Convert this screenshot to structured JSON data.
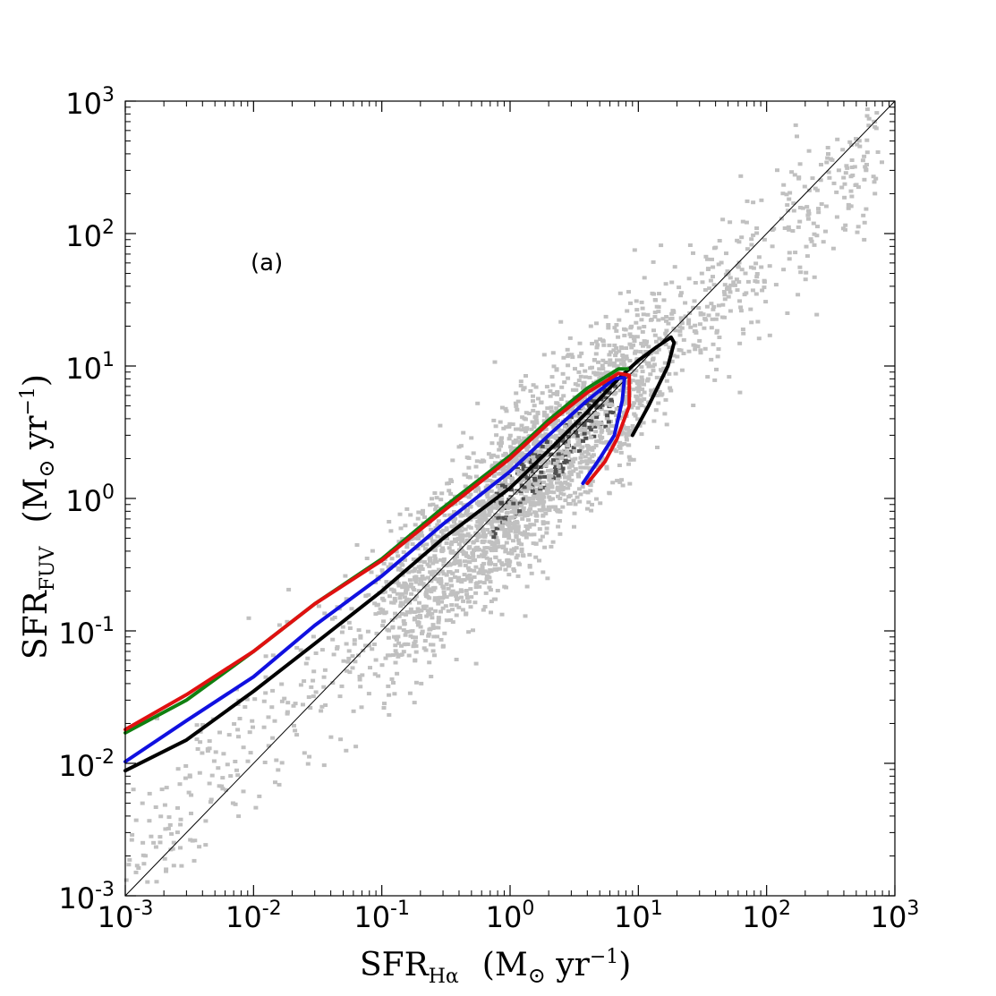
{
  "chart_data": {
    "type": "line",
    "panel_label": "(a)",
    "xlabel": {
      "main": "SFR",
      "sub": "Hα",
      "units_open": "(M",
      "sun": "⊙",
      "units_mid": " yr",
      "exp": "−1",
      "units_close": ")"
    },
    "ylabel": {
      "main": "SFR",
      "sub": "FUV",
      "units_open": "(M",
      "sun": "⊙",
      "units_mid": " yr",
      "exp": "−1",
      "units_close": ")"
    },
    "xscale": "log",
    "yscale": "log",
    "xlim": [
      0.001,
      1000
    ],
    "ylim": [
      0.001,
      1000
    ],
    "grid": false,
    "x_ticks": [
      {
        "value": 0.001,
        "base": "10",
        "exp": "-3"
      },
      {
        "value": 0.01,
        "base": "10",
        "exp": "-2"
      },
      {
        "value": 0.1,
        "base": "10",
        "exp": "-1"
      },
      {
        "value": 1,
        "base": "10",
        "exp": "0"
      },
      {
        "value": 10,
        "base": "10",
        "exp": "1"
      },
      {
        "value": 100,
        "base": "10",
        "exp": "2"
      },
      {
        "value": 1000,
        "base": "10",
        "exp": "3"
      }
    ],
    "y_ticks": [
      {
        "value": 0.001,
        "base": "10",
        "exp": "-3"
      },
      {
        "value": 0.01,
        "base": "10",
        "exp": "-2"
      },
      {
        "value": 0.1,
        "base": "10",
        "exp": "-1"
      },
      {
        "value": 1,
        "base": "10",
        "exp": "0"
      },
      {
        "value": 10,
        "base": "10",
        "exp": "1"
      },
      {
        "value": 100,
        "base": "10",
        "exp": "2"
      },
      {
        "value": 1000,
        "base": "10",
        "exp": "3"
      }
    ],
    "one_to_one_line": {
      "x": [
        0.001,
        1000
      ],
      "y": [
        0.001,
        1000
      ],
      "color": "#000000"
    },
    "scatter_cloud": {
      "color_light": "#c0c0c0",
      "color_dark": "#505050",
      "ridge": {
        "x": [
          0.003,
          0.01,
          0.03,
          0.1,
          0.3,
          1,
          3,
          10,
          30,
          100,
          300
        ],
        "y": [
          0.005,
          0.015,
          0.04,
          0.12,
          0.33,
          1.0,
          2.8,
          8.5,
          24,
          70,
          200
        ]
      }
    },
    "series": [
      {
        "color": "#000000",
        "x": [
          0.001,
          0.003,
          0.01,
          0.03,
          0.1,
          0.3,
          1.0,
          2.0,
          4.0,
          7.0,
          10,
          14,
          18,
          19,
          17,
          12,
          9
        ],
        "y": [
          0.0088,
          0.015,
          0.035,
          0.08,
          0.2,
          0.5,
          1.2,
          2.3,
          4.5,
          8.0,
          11,
          14,
          16.5,
          15,
          10,
          5,
          3.0
        ]
      },
      {
        "color": "#1010e0",
        "x": [
          0.001,
          0.003,
          0.01,
          0.03,
          0.1,
          0.3,
          1.0,
          2.0,
          4.0,
          6.5,
          7.8,
          7.5,
          6.5,
          5.0,
          3.7
        ],
        "y": [
          0.0103,
          0.021,
          0.045,
          0.11,
          0.26,
          0.64,
          1.6,
          3.0,
          5.5,
          8.0,
          8.2,
          5.5,
          3.0,
          2.0,
          1.3
        ]
      },
      {
        "color": "#108010",
        "x": [
          0.001,
          0.003,
          0.01,
          0.03,
          0.1,
          0.3,
          1.0,
          2.0,
          4.0,
          7.0,
          8.2
        ],
        "y": [
          0.017,
          0.03,
          0.07,
          0.16,
          0.35,
          0.85,
          2.1,
          3.9,
          6.8,
          9.5,
          9.5
        ]
      },
      {
        "color": "#e01010",
        "x": [
          0.001,
          0.003,
          0.01,
          0.03,
          0.1,
          0.3,
          1.0,
          2.0,
          4.0,
          7.0,
          8.5,
          8.5,
          6.8,
          5.5,
          4.0
        ],
        "y": [
          0.018,
          0.033,
          0.07,
          0.16,
          0.34,
          0.8,
          2.0,
          3.7,
          6.3,
          8.8,
          8.5,
          5.0,
          2.8,
          1.9,
          1.3
        ]
      }
    ]
  }
}
